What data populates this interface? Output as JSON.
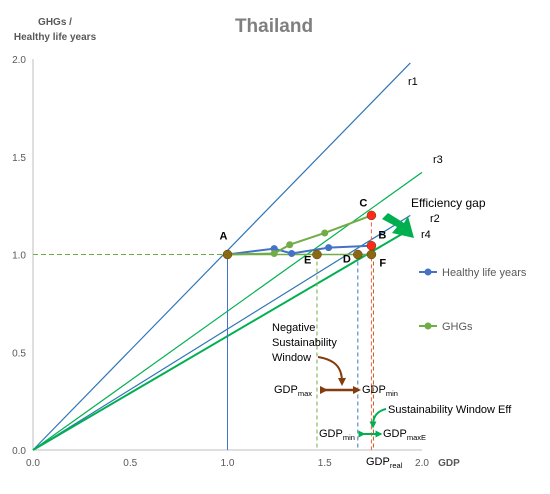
{
  "chart_data": {
    "type": "line",
    "title": "Thailand",
    "ylabel_line1": "GHGs /",
    "ylabel_line2": "Healthy life years",
    "xlabel": "GDP",
    "xlim": [
      0,
      2.0
    ],
    "ylim": [
      0,
      2.0
    ],
    "x_ticks": [
      "0.0",
      "0.5",
      "1.0",
      "1.5",
      "2.0"
    ],
    "y_ticks": [
      "0.0",
      "0.5",
      "1.0",
      "1.5",
      "2.0"
    ],
    "grid": false,
    "legend_position": "right",
    "series": [
      {
        "name": "Healthy life years",
        "color": "#4472c4",
        "x": [
          1.0,
          1.24,
          1.33,
          1.52,
          1.74
        ],
        "y": [
          1.0,
          1.03,
          1.005,
          1.035,
          1.045
        ]
      },
      {
        "name": "GHGs",
        "color": "#70ad47",
        "x": [
          1.0,
          1.24,
          1.32,
          1.5,
          1.74
        ],
        "y": [
          1.0,
          1.005,
          1.05,
          1.11,
          1.2
        ]
      }
    ],
    "rays": [
      {
        "label": "r1",
        "color": "#2e75b6",
        "x_end": 1.94,
        "y_end": 1.98
      },
      {
        "label": "r3",
        "color": "#00b050",
        "x_end": 2.0,
        "y_end": 1.42
      },
      {
        "label": "r2",
        "color": "#2e75b6",
        "x_end": 1.94,
        "y_end": 1.2
      },
      {
        "label": "r4",
        "color": "#00b050",
        "x_end": 1.94,
        "y_end": 1.13
      }
    ],
    "points": [
      {
        "label": "A",
        "x": 1.0,
        "y": 1.0,
        "color": "#8b6914"
      },
      {
        "label": "B",
        "x": 1.74,
        "y": 1.045,
        "color": "#ff2a1a"
      },
      {
        "label": "C",
        "x": 1.74,
        "y": 1.2,
        "color": "#ff2a1a"
      },
      {
        "label": "D",
        "x": 1.67,
        "y": 1.0,
        "color": "#8b6914"
      },
      {
        "label": "E",
        "x": 1.46,
        "y": 1.0,
        "color": "#8b6914"
      },
      {
        "label": "F",
        "x": 1.74,
        "y": 1.0,
        "color": "#8b6914"
      }
    ],
    "annotations": {
      "efficiency_gap": "Efficiency gap",
      "negative_window_line1": "Negative",
      "negative_window_line2": "Sustainability",
      "negative_window_line3": "Window",
      "sustainability_window_eff": "Sustainability Window Eff",
      "gdp_main": "GDP",
      "sub_max": "max",
      "sub_min": "min",
      "sub_maxE": "maxE",
      "sub_real": "real"
    }
  }
}
